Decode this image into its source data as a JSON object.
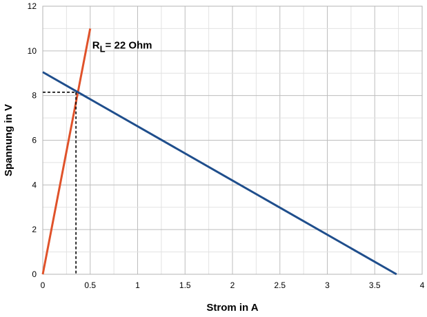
{
  "chart_data": {
    "type": "line",
    "xlabel": "Strom in A",
    "ylabel": "Spannung in V",
    "xlim": [
      0,
      4
    ],
    "ylim": [
      0,
      12
    ],
    "x_ticks": [
      "0",
      "0.5",
      "1",
      "1.5",
      "2",
      "2.5",
      "3",
      "3.5",
      "4"
    ],
    "y_ticks": [
      "0",
      "2",
      "4",
      "6",
      "8",
      "10",
      "12"
    ],
    "grid": true,
    "series": [
      {
        "name": "",
        "color": "#e0522a",
        "points": [
          [
            0,
            0
          ],
          [
            0.5,
            11
          ]
        ]
      },
      {
        "name": "",
        "color": "#1f4e8c",
        "points": [
          [
            0,
            9.05
          ],
          [
            3.73,
            0
          ]
        ]
      }
    ],
    "operating_point": {
      "x": 0.35,
      "y": 8.15
    },
    "annotation": {
      "main": "R",
      "sub": "L",
      "rest": "= 22 Ohm",
      "anchor_x": 0.5,
      "anchor_y": 10.2
    }
  }
}
